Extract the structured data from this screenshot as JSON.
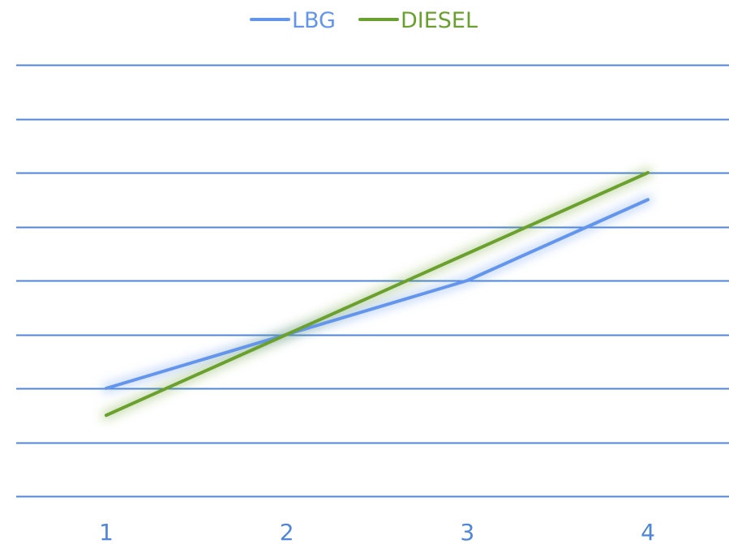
{
  "chart_data": {
    "type": "line",
    "title": "",
    "xlabel": "",
    "ylabel": "",
    "categories": [
      "1",
      "2",
      "3",
      "4"
    ],
    "ylim": [
      0,
      8
    ],
    "grid": true,
    "legend_position": "top-center",
    "series": [
      {
        "name": "LBG",
        "color": "#6495ED",
        "values": [
          2.0,
          3.0,
          4.0,
          5.5
        ]
      },
      {
        "name": "DIESEL",
        "color": "#6AA02E",
        "values": [
          1.5,
          3.0,
          4.5,
          6.0
        ]
      }
    ],
    "colors": {
      "grid": "#4F86D9",
      "tick_label": "#4F86D9"
    }
  }
}
